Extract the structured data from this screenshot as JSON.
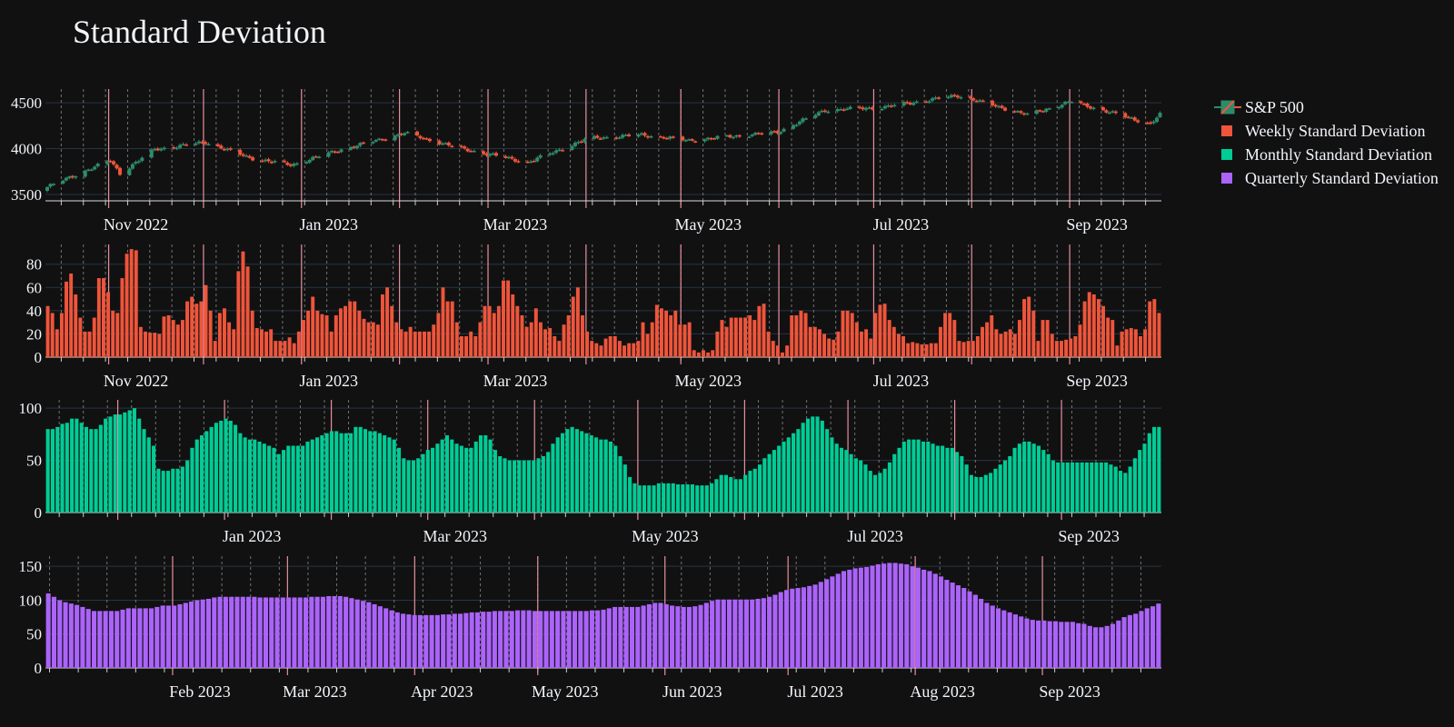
{
  "title": "Standard Deviation",
  "colors": {
    "background": "#111111",
    "grid": "#283442",
    "increasing": "#2e8b6a",
    "decreasing": "#ef553b",
    "weekly": "#ef553b",
    "monthly": "#00cc96",
    "quarterly": "#ab63fa",
    "month_line": "#e88f9f",
    "text": "#f2f5fa"
  },
  "legend": [
    {
      "name": "S&P 500",
      "type": "candlestick"
    },
    {
      "name": "Weekly Standard Deviation",
      "color": "#ef553b"
    },
    {
      "name": "Monthly Standard Deviation",
      "color": "#00cc96"
    },
    {
      "name": "Quarterly Standard Deviation",
      "color": "#ab63fa"
    }
  ],
  "chart_data": [
    {
      "type": "candlestick",
      "name": "S&P 500",
      "x_range": [
        "2022-10-12",
        "2023-09-29"
      ],
      "x_tick_labels": [
        "Nov 2022",
        "Jan 2023",
        "Mar 2023",
        "May 2023",
        "Jul 2023",
        "Sep 2023"
      ],
      "x_tick_dates": [
        "2022-11-01",
        "2023-01-01",
        "2023-03-01",
        "2023-05-01",
        "2023-07-01",
        "2023-09-01"
      ],
      "yticks": [
        3500,
        4000,
        4500
      ],
      "ylim": [
        3430,
        4650
      ],
      "close_anchors": [
        [
          "2022-10-12",
          3580
        ],
        [
          "2022-10-20",
          3700
        ],
        [
          "2022-11-01",
          3870
        ],
        [
          "2022-11-04",
          3730
        ],
        [
          "2022-11-15",
          3990
        ],
        [
          "2022-12-01",
          4070
        ],
        [
          "2022-12-15",
          3900
        ],
        [
          "2022-12-28",
          3820
        ],
        [
          "2023-01-12",
          3980
        ],
        [
          "2023-02-02",
          4170
        ],
        [
          "2023-02-20",
          4000
        ],
        [
          "2023-03-13",
          3850
        ],
        [
          "2023-04-01",
          4110
        ],
        [
          "2023-04-18",
          4150
        ],
        [
          "2023-05-03",
          4090
        ],
        [
          "2023-05-31",
          4180
        ],
        [
          "2023-06-15",
          4420
        ],
        [
          "2023-07-03",
          4450
        ],
        [
          "2023-07-27",
          4580
        ],
        [
          "2023-08-18",
          4370
        ],
        [
          "2023-09-01",
          4515
        ],
        [
          "2023-09-26",
          4270
        ],
        [
          "2023-09-29",
          4370
        ]
      ]
    },
    {
      "type": "bar",
      "name": "Weekly Standard Deviation",
      "x_range": [
        "2022-10-12",
        "2023-09-29"
      ],
      "x_tick_labels": [
        "Nov 2022",
        "Jan 2023",
        "Mar 2023",
        "May 2023",
        "Jul 2023",
        "Sep 2023"
      ],
      "x_tick_dates": [
        "2022-11-01",
        "2023-01-01",
        "2023-03-01",
        "2023-05-01",
        "2023-07-01",
        "2023-09-01"
      ],
      "yticks": [
        0,
        20,
        40,
        60,
        80
      ],
      "ylim": [
        0,
        97
      ],
      "values": [
        44,
        38,
        24,
        38,
        65,
        72,
        54,
        34,
        22,
        22,
        34,
        68,
        68,
        56,
        40,
        38,
        68,
        89,
        93,
        92,
        26,
        22,
        21,
        21,
        20,
        35,
        36,
        32,
        28,
        32,
        48,
        52,
        46,
        48,
        62,
        40,
        14,
        38,
        42,
        30,
        24,
        74,
        91,
        78,
        40,
        25,
        24,
        22,
        24,
        14,
        14,
        14,
        17,
        12,
        22,
        32,
        40,
        52,
        40,
        37,
        36,
        22,
        36,
        42,
        44,
        48,
        48,
        40,
        33,
        30,
        30,
        28,
        54,
        60,
        44,
        30,
        24,
        22,
        26,
        22,
        22,
        22,
        22,
        28,
        38,
        60,
        48,
        48,
        30,
        18,
        18,
        22,
        18,
        30,
        44,
        44,
        38,
        44,
        66,
        66,
        54,
        44,
        36,
        26,
        30,
        42,
        30,
        24,
        25,
        18,
        14,
        28,
        36,
        52,
        60,
        36,
        22,
        14,
        12,
        10,
        16,
        18,
        18,
        14,
        10,
        12,
        12,
        14,
        30,
        20,
        30,
        45,
        42,
        40,
        36,
        40,
        28,
        28,
        30,
        6,
        4,
        6,
        4,
        6,
        22,
        32,
        26,
        34,
        34,
        34,
        34,
        36,
        32,
        44,
        46,
        22,
        14,
        10,
        4,
        10,
        36,
        36,
        40,
        38,
        26,
        26,
        24,
        20,
        16,
        15,
        22,
        40,
        40,
        38,
        30,
        22,
        24,
        16,
        38,
        45,
        46,
        32,
        26,
        20,
        18,
        12,
        13,
        12,
        11,
        11,
        12,
        12,
        26,
        38,
        38,
        32,
        14,
        13,
        14,
        14,
        18,
        26,
        30,
        36,
        24,
        20,
        22,
        24,
        20,
        32,
        50,
        52,
        40,
        14,
        32,
        32,
        20,
        14,
        14,
        15,
        16,
        18,
        28,
        48,
        56,
        54,
        50,
        44,
        34,
        32,
        10,
        22,
        24,
        25,
        24,
        18,
        24,
        48,
        50,
        38
      ]
    },
    {
      "type": "bar",
      "name": "Monthly Standard Deviation",
      "x_range": [
        "2022-11-10",
        "2023-09-29"
      ],
      "x_tick_labels": [
        "Jan 2023",
        "Mar 2023",
        "May 2023",
        "Jul 2023",
        "Sep 2023"
      ],
      "x_tick_dates": [
        "2023-01-01",
        "2023-03-01",
        "2023-05-01",
        "2023-07-01",
        "2023-09-01"
      ],
      "yticks": [
        0,
        50,
        100
      ],
      "ylim": [
        0,
        108
      ],
      "values": [
        80,
        80,
        82,
        85,
        86,
        90,
        90,
        86,
        82,
        80,
        80,
        84,
        90,
        92,
        94,
        94,
        96,
        98,
        100,
        90,
        80,
        72,
        64,
        42,
        40,
        40,
        42,
        42,
        44,
        50,
        62,
        70,
        74,
        78,
        82,
        86,
        88,
        90,
        88,
        84,
        76,
        72,
        70,
        70,
        68,
        66,
        64,
        62,
        56,
        60,
        64,
        64,
        64,
        64,
        68,
        70,
        72,
        74,
        76,
        78,
        78,
        76,
        76,
        76,
        82,
        82,
        80,
        78,
        78,
        76,
        74,
        72,
        70,
        62,
        52,
        50,
        50,
        52,
        56,
        60,
        62,
        66,
        70,
        74,
        70,
        66,
        64,
        62,
        62,
        68,
        74,
        74,
        70,
        60,
        54,
        52,
        50,
        50,
        50,
        50,
        50,
        50,
        52,
        54,
        58,
        66,
        72,
        76,
        80,
        82,
        80,
        78,
        76,
        74,
        72,
        70,
        70,
        68,
        64,
        54,
        46,
        34,
        28,
        26,
        26,
        26,
        26,
        28,
        28,
        28,
        28,
        27,
        27,
        27,
        27,
        26,
        26,
        26,
        28,
        32,
        36,
        36,
        34,
        32,
        32,
        36,
        40,
        42,
        46,
        52,
        56,
        60,
        64,
        68,
        72,
        76,
        80,
        86,
        90,
        92,
        92,
        88,
        80,
        72,
        66,
        62,
        60,
        56,
        52,
        50,
        46,
        40,
        36,
        38,
        42,
        48,
        56,
        62,
        68,
        70,
        70,
        70,
        68,
        68,
        66,
        64,
        64,
        62,
        62,
        58,
        54,
        46,
        36,
        34,
        34,
        36,
        38,
        42,
        46,
        50,
        54,
        62,
        66,
        68,
        68,
        66,
        64,
        60,
        56,
        50,
        48,
        48,
        48,
        48,
        48,
        48,
        48,
        48,
        48,
        48,
        48,
        46,
        44,
        40,
        38,
        44,
        52,
        60,
        66,
        76,
        82,
        82,
        84,
        86,
        88,
        90,
        92,
        92,
        90,
        86,
        82,
        78,
        68
      ]
    },
    {
      "type": "bar",
      "name": "Quarterly Standard Deviation",
      "x_range": [
        "2023-01-01",
        "2023-09-29"
      ],
      "x_tick_labels": [
        "Feb 2023",
        "Mar 2023",
        "Apr 2023",
        "May 2023",
        "Jun 2023",
        "Jul 2023",
        "Aug 2023",
        "Sep 2023"
      ],
      "x_tick_dates": [
        "2023-02-01",
        "2023-03-01",
        "2023-04-01",
        "2023-05-01",
        "2023-06-01",
        "2023-07-01",
        "2023-08-01",
        "2023-09-01"
      ],
      "yticks": [
        0,
        50,
        100,
        150
      ],
      "ylim": [
        0,
        165
      ],
      "values": [
        110,
        105,
        100,
        97,
        95,
        93,
        90,
        87,
        84,
        84,
        84,
        84,
        84,
        86,
        88,
        88,
        88,
        88,
        88,
        90,
        92,
        92,
        92,
        94,
        96,
        98,
        100,
        101,
        102,
        104,
        105,
        105,
        105,
        105,
        105,
        105,
        105,
        104,
        104,
        104,
        104,
        104,
        104,
        104,
        104,
        104,
        105,
        105,
        105,
        106,
        106,
        106,
        105,
        103,
        101,
        99,
        97,
        94,
        91,
        88,
        85,
        82,
        80,
        79,
        78,
        78,
        78,
        78,
        78,
        79,
        79,
        80,
        80,
        81,
        82,
        82,
        83,
        83,
        84,
        84,
        84,
        84,
        85,
        85,
        85,
        84,
        84,
        84,
        84,
        84,
        84,
        84,
        84,
        84,
        84,
        85,
        85,
        86,
        88,
        90,
        90,
        90,
        90,
        90,
        92,
        94,
        96,
        96,
        94,
        92,
        91,
        90,
        90,
        91,
        93,
        96,
        99,
        101,
        101,
        101,
        101,
        101,
        101,
        101,
        102,
        103,
        105,
        108,
        112,
        115,
        117,
        118,
        119,
        121,
        123,
        127,
        131,
        135,
        139,
        143,
        145,
        147,
        148,
        149,
        151,
        153,
        154,
        155,
        155,
        154,
        153,
        150,
        148,
        145,
        143,
        139,
        135,
        130,
        126,
        122,
        118,
        113,
        108,
        102,
        96,
        92,
        88,
        85,
        82,
        79,
        76,
        73,
        71,
        70,
        70,
        69,
        69,
        68,
        68,
        68,
        66,
        65,
        62,
        60,
        60,
        62,
        65,
        70,
        75,
        78,
        80,
        84,
        88,
        91,
        95,
        96,
        97,
        97,
        97,
        97,
        96,
        95
      ]
    }
  ]
}
